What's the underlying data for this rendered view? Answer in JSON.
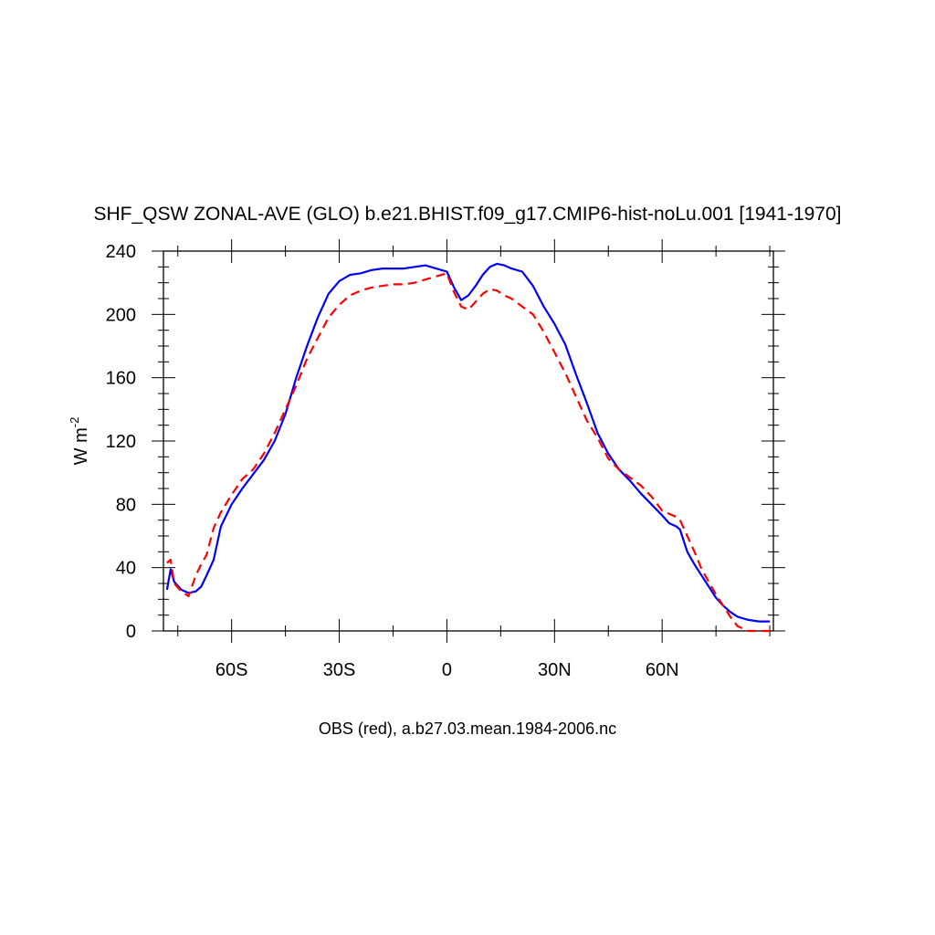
{
  "chart_data": {
    "type": "line",
    "title": "SHF_QSW ZONAL-AVE (GLO) b.e21.BHIST.f09_g17.CMIP6-hist-noLu.001 [1941-1970]",
    "xlabel": "OBS (red), a.b27.03.mean.1984-2006.nc",
    "ylabel": "W m",
    "ylabel_sup": "-2",
    "xlim": [
      -79,
      91
    ],
    "ylim": [
      0,
      240
    ],
    "yticks": [
      0,
      40,
      80,
      120,
      160,
      200,
      240
    ],
    "xticks": [
      -60,
      -30,
      0,
      30,
      60
    ],
    "xtick_labels": [
      "60S",
      "30S",
      "0",
      "30N",
      "60N"
    ],
    "grid": false,
    "legend": "none",
    "colors": {
      "model": "#0000ff",
      "obs": "#ff0000"
    },
    "series": [
      {
        "line_style": "solid",
        "color": "#0000ff",
        "x": [
          -78,
          -77,
          -76,
          -74,
          -72,
          -70,
          -68.5,
          -67,
          -65,
          -63,
          -60,
          -57,
          -54,
          -51,
          -48,
          -45,
          -42,
          -39,
          -36,
          -33,
          -30,
          -27,
          -24,
          -21,
          -18,
          -15,
          -12,
          -9,
          -6,
          -3,
          0,
          2,
          4,
          6,
          8,
          10,
          12,
          14,
          16,
          18,
          21,
          24,
          27,
          30,
          33,
          36,
          39,
          42,
          45,
          48,
          51,
          54,
          57,
          60,
          62,
          64,
          65,
          67,
          69,
          71,
          73,
          75,
          77,
          79,
          81,
          84,
          87,
          90
        ],
        "y": [
          26,
          39,
          31,
          26,
          24,
          25,
          28,
          35,
          45,
          66,
          80,
          90,
          99,
          108,
          120,
          137,
          160,
          180,
          198,
          213,
          221,
          225,
          226,
          228,
          229,
          229,
          229,
          230,
          231,
          229,
          227,
          217,
          209,
          212,
          218,
          225,
          230,
          232,
          231,
          229,
          227,
          218,
          205,
          194,
          181,
          162,
          144,
          125,
          112,
          102,
          95,
          87,
          80,
          73,
          68,
          66,
          64,
          50,
          42,
          35,
          28,
          21,
          16,
          12,
          9,
          7,
          6,
          6
        ]
      },
      {
        "line_style": "dashed",
        "color": "#ff0000",
        "x": [
          -78,
          -77,
          -76,
          -74,
          -72,
          -70,
          -68.5,
          -67,
          -65,
          -63,
          -60,
          -57,
          -54,
          -51,
          -48,
          -45,
          -42,
          -39,
          -36,
          -33,
          -30,
          -27,
          -24,
          -21,
          -18,
          -15,
          -12,
          -9,
          -6,
          -3,
          0,
          2,
          4,
          6,
          8,
          10,
          12,
          14,
          16,
          18,
          21,
          24,
          27,
          30,
          33,
          36,
          39,
          42,
          45,
          48,
          51,
          54,
          57,
          60,
          62,
          64,
          65,
          67,
          69,
          71,
          73,
          75,
          77,
          79,
          81,
          84,
          87,
          90
        ],
        "y": [
          43,
          45,
          30,
          25,
          22,
          35,
          42,
          48,
          65,
          75,
          86,
          96,
          102,
          112,
          125,
          140,
          155,
          172,
          185,
          198,
          206,
          212,
          215,
          217,
          218,
          219,
          219,
          220,
          222,
          224,
          226,
          214,
          205,
          203,
          208,
          213,
          216,
          215,
          212,
          210,
          205,
          200,
          189,
          176,
          163,
          148,
          133,
          122,
          109,
          102,
          97,
          92,
          85,
          76,
          74,
          72,
          70,
          60,
          50,
          39,
          31,
          23,
          16,
          9,
          3,
          0,
          0,
          0
        ]
      }
    ]
  }
}
